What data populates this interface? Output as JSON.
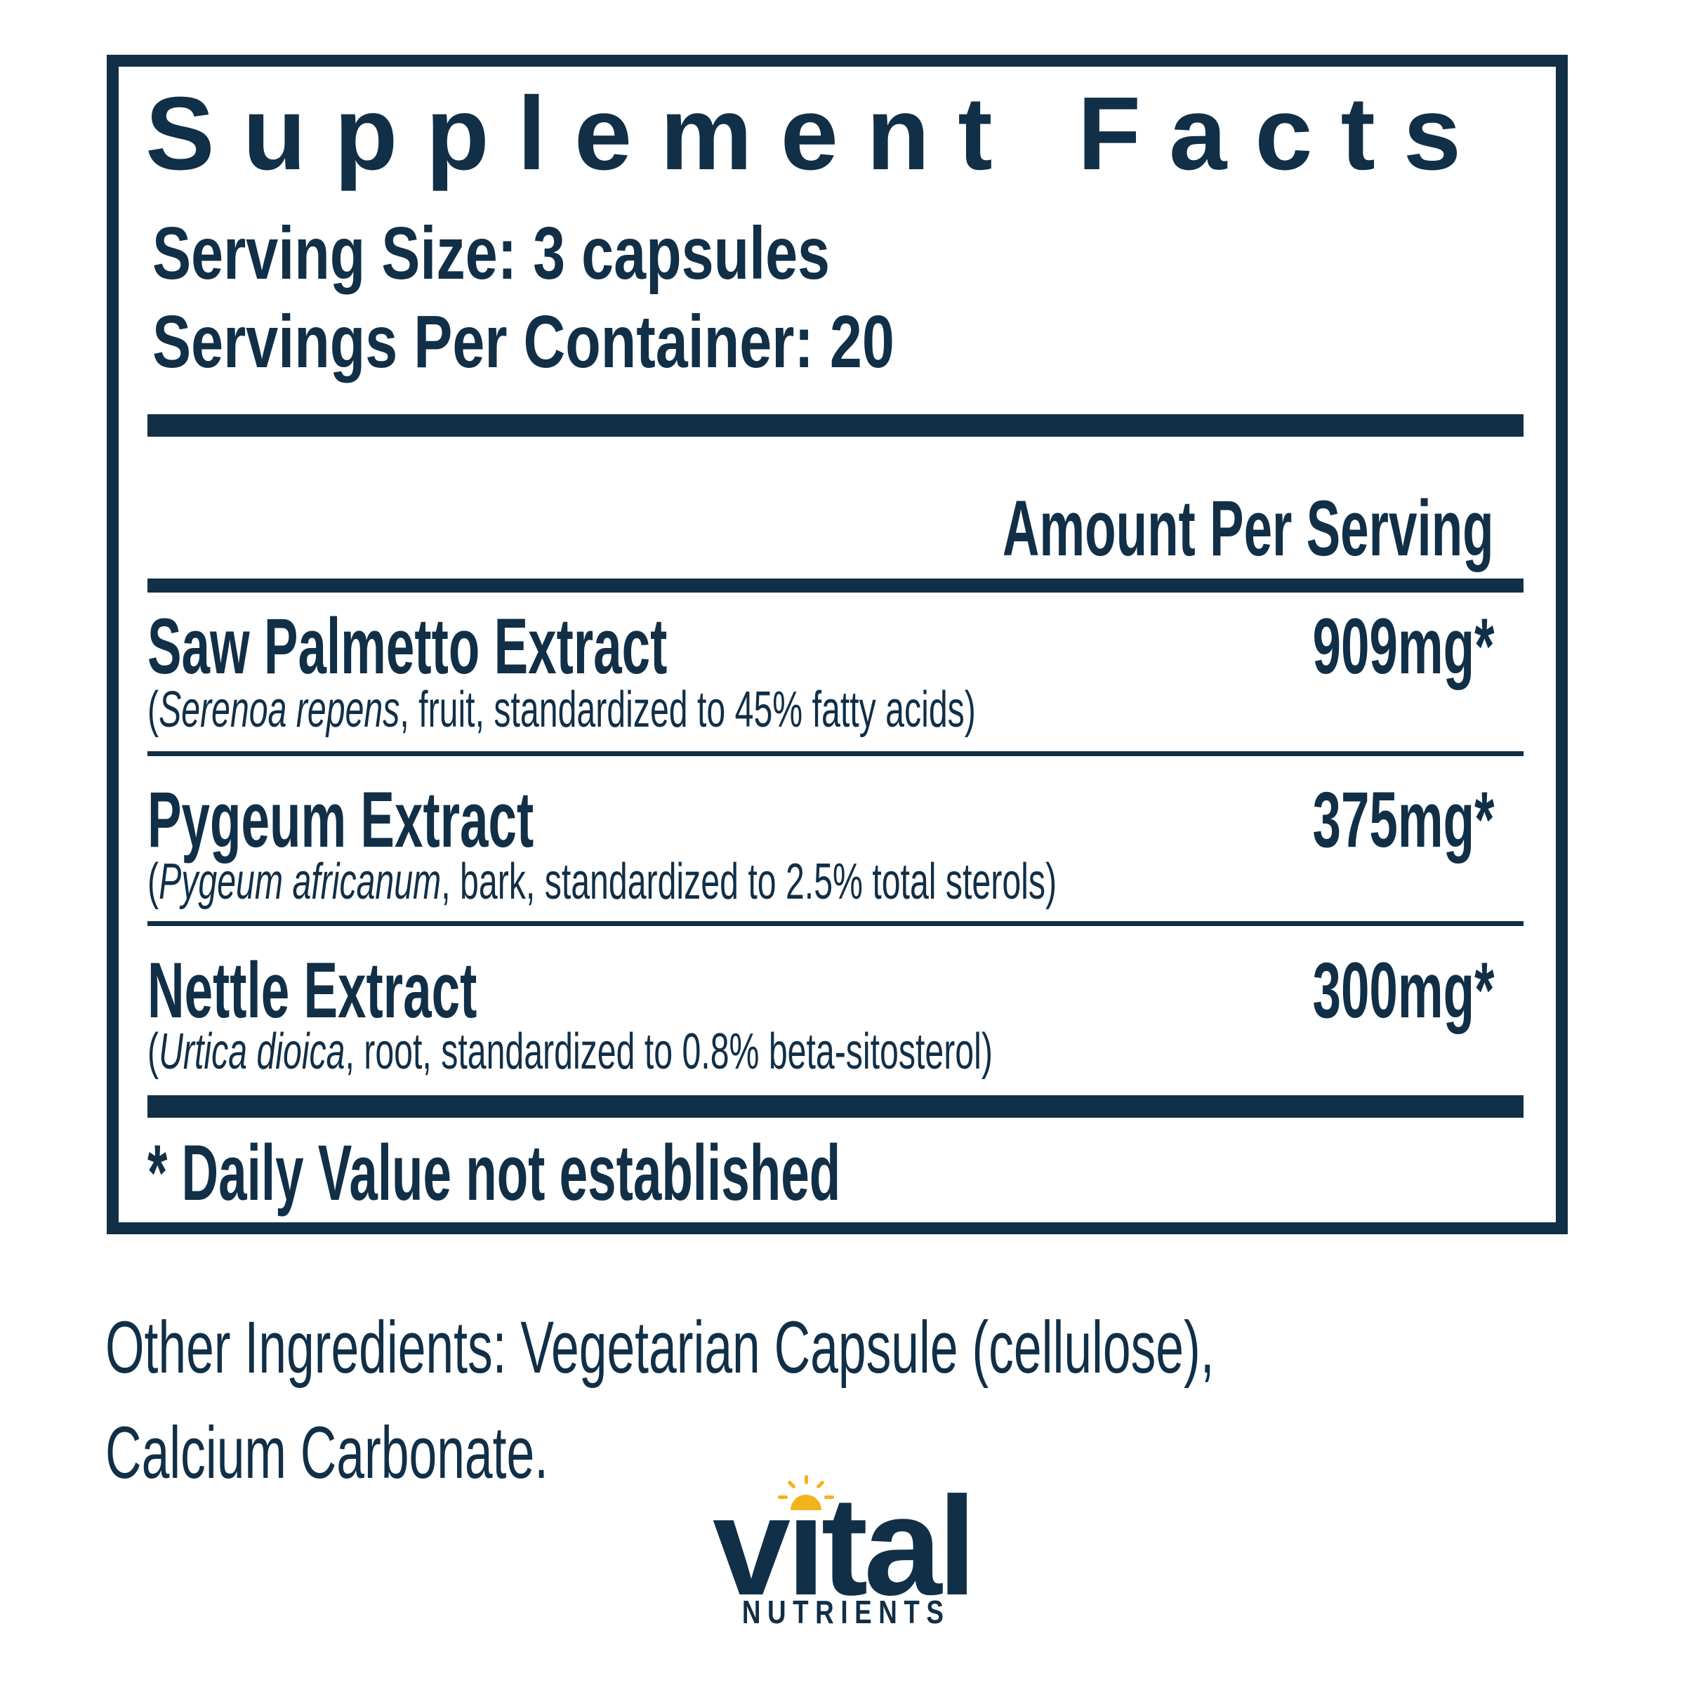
{
  "colors": {
    "navy": "#112f47",
    "sun_yellow": "#f2b31f",
    "background": "#ffffff"
  },
  "supplement_facts": {
    "title": "Supplement Facts",
    "serving_size": "Serving Size: 3 capsules",
    "servings_per_container": "Servings Per Container: 20",
    "amount_header": "Amount Per Serving",
    "rows": [
      {
        "name": "Saw Palmetto Extract",
        "amount": "909mg*",
        "detail_open": "(",
        "detail_latin": "Serenoa repens",
        "detail_rest": ", fruit, standardized to 45% fatty acids)"
      },
      {
        "name": "Pygeum Extract",
        "amount": "375mg*",
        "detail_open": "(",
        "detail_latin": "Pygeum africanum",
        "detail_rest": ", bark, standardized to 2.5% total sterols)"
      },
      {
        "name": "Nettle Extract",
        "amount": "300mg*",
        "detail_open": "(",
        "detail_latin": "Urtica dioica",
        "detail_rest": ", root, standardized to 0.8% beta-sitosterol)"
      }
    ],
    "footnote": "* Daily Value not established"
  },
  "other_ingredients": {
    "line1": "Other Ingredients: Vegetarian Capsule (cellulose),",
    "line2": "Calcium Carbonate."
  },
  "logo": {
    "wordmark": "vital",
    "subtext": "NUTRIENTS",
    "icon": "sun-icon"
  }
}
